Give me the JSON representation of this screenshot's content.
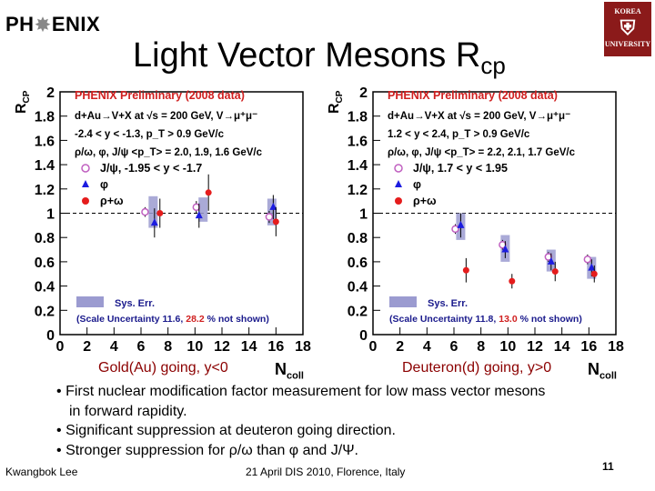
{
  "header": {
    "logo_prefix": "PH",
    "logo_suffix": "ENIX",
    "univ_lines": [
      "KOREA",
      "UNIVERSITY"
    ],
    "title": "Light Vector Mesons R",
    "title_sub": "cp"
  },
  "colors": {
    "red": "#e51c1c",
    "blue": "#1c1ce0",
    "magenta": "#c060c0",
    "sys": "#9b9bd0",
    "prelim": "#d02020",
    "caption": "#8b0000"
  },
  "chart_data": [
    {
      "type": "scatter",
      "ylabel": "R",
      "ylabel_sub": "CP",
      "xlabel": "N",
      "xlabel_sub": "coll",
      "xlim": [
        0,
        18
      ],
      "ylim": [
        0,
        2
      ],
      "xticks": [
        "0",
        "2",
        "4",
        "6",
        "8",
        "10",
        "12",
        "14",
        "16",
        "18"
      ],
      "yticks": [
        "0",
        "0.2",
        "0.4",
        "0.6",
        "0.8",
        "1",
        "1.2",
        "1.4",
        "1.6",
        "1.8",
        "2"
      ],
      "prelim": "PHENIX Preliminary (2008 data)",
      "text_lines": [
        "d+Au→V+X at √s = 200 GeV, V→μ⁺μ⁻",
        "-2.4 < y < -1.3, p_T > 0.9 GeV/c",
        "ρ/ω, φ, J/ψ <p_T> = 2.0, 1.9, 1.6 GeV/c"
      ],
      "legend": [
        "J/ψ, -1.95 < y < -1.7",
        "φ",
        "ρ+ω"
      ],
      "sys_label": "Sys. Err.",
      "scale_prefix": "(Scale Uncertainty 11.6, ",
      "scale_colored": "28.2",
      "scale_suffix": " % not shown)",
      "caption": "Gold(Au) going, y<0",
      "series": [
        {
          "name": "J/ψ",
          "marker": "circle-open",
          "points": [
            {
              "x": 6.3,
              "y": 1.01,
              "err": 0.04
            },
            {
              "x": 10.1,
              "y": 1.05,
              "err": 0.05
            },
            {
              "x": 15.5,
              "y": 0.97,
              "err": 0.05
            }
          ]
        },
        {
          "name": "φ",
          "marker": "triangle",
          "points": [
            {
              "x": 7.0,
              "y": 0.92,
              "err": 0.12
            },
            {
              "x": 10.3,
              "y": 0.98,
              "err": 0.1
            },
            {
              "x": 15.8,
              "y": 1.05,
              "err": 0.1
            }
          ]
        },
        {
          "name": "ρ+ω",
          "marker": "circle",
          "points": [
            {
              "x": 7.4,
              "y": 1.0,
              "err": 0.12
            },
            {
              "x": 11.0,
              "y": 1.17,
              "err": 0.15
            },
            {
              "x": 16.0,
              "y": 0.93,
              "err": 0.12
            }
          ]
        }
      ],
      "sys_boxes": [
        {
          "x": 6.9,
          "ylo": 0.88,
          "yhi": 1.14
        },
        {
          "x": 10.6,
          "ylo": 0.93,
          "yhi": 1.13
        },
        {
          "x": 15.7,
          "ylo": 0.9,
          "yhi": 1.12
        }
      ]
    },
    {
      "type": "scatter",
      "ylabel": "R",
      "ylabel_sub": "CP",
      "xlabel": "N",
      "xlabel_sub": "coll",
      "xlim": [
        0,
        18
      ],
      "ylim": [
        0,
        2
      ],
      "xticks": [
        "0",
        "2",
        "4",
        "6",
        "8",
        "10",
        "12",
        "14",
        "16",
        "18"
      ],
      "yticks": [
        "0",
        "0.2",
        "0.4",
        "0.6",
        "0.8",
        "1",
        "1.2",
        "1.4",
        "1.6",
        "1.8",
        "2"
      ],
      "prelim": "PHENIX Preliminary (2008 data)",
      "text_lines": [
        "d+Au→V+X at √s = 200 GeV, V→μ⁺μ⁻",
        "1.2 < y < 2.4, p_T > 0.9 GeV/c",
        "ρ/ω, φ, J/ψ <p_T> = 2.2, 2.1, 1.7 GeV/c"
      ],
      "legend": [
        "J/ψ, 1.7 < y < 1.95",
        "φ",
        "ρ+ω"
      ],
      "sys_label": "Sys. Err.",
      "scale_prefix": "(Scale Uncertainty 11.8, ",
      "scale_colored": "13.0",
      "scale_suffix": " % not shown)",
      "caption": "Deuteron(d) going, y>0",
      "series": [
        {
          "name": "J/ψ",
          "marker": "circle-open",
          "points": [
            {
              "x": 6.1,
              "y": 0.87,
              "err": 0.04
            },
            {
              "x": 9.6,
              "y": 0.74,
              "err": 0.04
            },
            {
              "x": 13.0,
              "y": 0.64,
              "err": 0.04
            },
            {
              "x": 15.9,
              "y": 0.62,
              "err": 0.04
            }
          ]
        },
        {
          "name": "φ",
          "marker": "triangle",
          "points": [
            {
              "x": 6.5,
              "y": 0.9,
              "err": 0.1
            },
            {
              "x": 9.8,
              "y": 0.7,
              "err": 0.07
            },
            {
              "x": 13.2,
              "y": 0.6,
              "err": 0.07
            },
            {
              "x": 16.2,
              "y": 0.55,
              "err": 0.07
            }
          ]
        },
        {
          "name": "ρ+ω",
          "marker": "circle",
          "points": [
            {
              "x": 6.9,
              "y": 0.53,
              "err": 0.1
            },
            {
              "x": 10.3,
              "y": 0.44,
              "err": 0.06
            },
            {
              "x": 13.5,
              "y": 0.52,
              "err": 0.08
            },
            {
              "x": 16.4,
              "y": 0.5,
              "err": 0.07
            }
          ]
        }
      ],
      "sys_boxes": [
        {
          "x": 6.5,
          "ylo": 0.78,
          "yhi": 1.0
        },
        {
          "x": 9.8,
          "ylo": 0.6,
          "yhi": 0.82
        },
        {
          "x": 13.2,
          "ylo": 0.52,
          "yhi": 0.7
        },
        {
          "x": 16.2,
          "ylo": 0.46,
          "yhi": 0.64
        }
      ]
    }
  ],
  "bullets": [
    "First nuclear modification factor measurement for low mass vector mesons",
    "in forward rapidity.",
    "Significant suppression at deuteron going direction.",
    "Stronger suppression for ρ/ω than φ and J/Ψ."
  ],
  "bullet_char": "•",
  "footer": {
    "author": "Kwangbok Lee",
    "event": "21 April DIS 2010, Florence, Italy",
    "page": "11"
  }
}
